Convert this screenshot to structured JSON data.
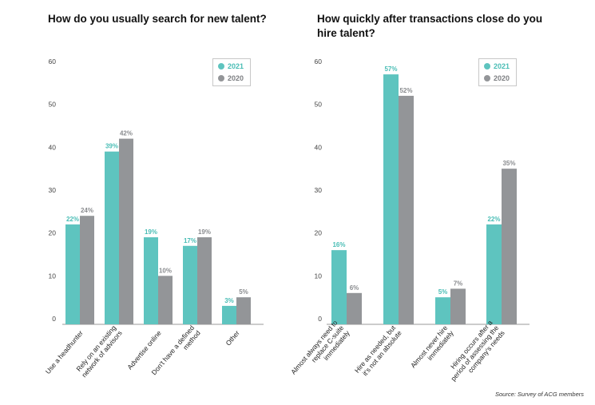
{
  "colors": {
    "series_2021": "#5ec4bf",
    "series_2020": "#939598",
    "label_2021": "#49bdb5",
    "label_2020": "#8a8c8f",
    "axis": "#999999",
    "tick": "#444444"
  },
  "source": "Source: Survey of ACG members",
  "chart_data": [
    {
      "type": "bar",
      "title": "How do you usually search for new talent?",
      "xlabel": "",
      "ylabel": "",
      "ylim": [
        0,
        60
      ],
      "yticks": [
        0,
        10,
        20,
        30,
        40,
        50,
        60
      ],
      "legend": "top-right",
      "categories": [
        "Use a headhunter",
        "Rely on an existing network of advisors",
        "Advertise online",
        "Don't have a defined method",
        "Other"
      ],
      "category_lines": [
        [
          "Use a headhunter"
        ],
        [
          "Rely on an existing",
          "network of advisors"
        ],
        [
          "Advertise online"
        ],
        [
          "Don't have a defined",
          "method"
        ],
        [
          "Other"
        ]
      ],
      "series": [
        {
          "name": "2021",
          "values": [
            22,
            39,
            19,
            17,
            3
          ],
          "labels": [
            "22%",
            "39%",
            "19%",
            "17%",
            "3%"
          ]
        },
        {
          "name": "2020",
          "values": [
            24,
            42,
            10,
            19,
            5
          ],
          "labels": [
            "24%",
            "42%",
            "10%",
            "19%",
            "5%"
          ]
        }
      ]
    },
    {
      "type": "bar",
      "title": "How quickly after transactions close do you hire talent?",
      "xlabel": "",
      "ylabel": "",
      "ylim": [
        0,
        60
      ],
      "yticks": [
        0,
        10,
        20,
        30,
        40,
        50,
        60
      ],
      "legend": "top-right",
      "categories": [
        "Almost always need to replace C-suite immediately",
        "Hire as needed, but it's not an absolute",
        "Almost never hire immediately",
        "Hiring occurs after a period of assessing the company's needs"
      ],
      "category_lines": [
        [
          "Almost always need to",
          "replace C-suite",
          "immediately"
        ],
        [
          "Hire as needed, but",
          "it's not an absolute"
        ],
        [
          "Almost never hire",
          "immediately"
        ],
        [
          "Hiring occurs after a",
          "period of assessing the",
          "company's needs"
        ]
      ],
      "series": [
        {
          "name": "2021",
          "values": [
            16,
            57,
            5,
            22
          ],
          "labels": [
            "16%",
            "57%",
            "5%",
            "22%"
          ]
        },
        {
          "name": "2020",
          "values": [
            6,
            52,
            7,
            35
          ],
          "labels": [
            "6%",
            "52%",
            "7%",
            "35%"
          ]
        }
      ]
    }
  ]
}
